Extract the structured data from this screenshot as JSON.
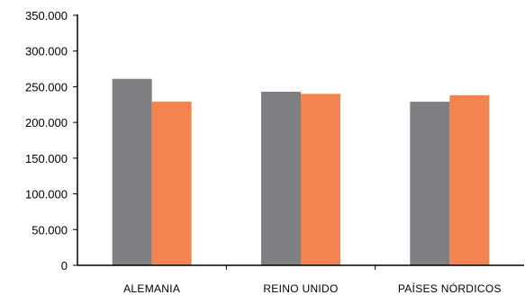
{
  "chart_data": {
    "type": "bar",
    "title": "",
    "xlabel": "",
    "ylabel": "",
    "categories": [
      "ALEMANIA",
      "REINO UNIDO",
      "PAÍSES NÓRDICOS"
    ],
    "series": [
      {
        "values": [
          261000,
          243000,
          229000
        ],
        "color": "#7f7f83"
      },
      {
        "values": [
          229000,
          240000,
          238000
        ],
        "color": "#f28450"
      }
    ],
    "ylim": [
      0,
      350000
    ],
    "yticks": [
      0,
      50000,
      100000,
      150000,
      200000,
      250000,
      300000,
      350000
    ],
    "ytick_labels": [
      "0",
      "50.000",
      "100.000",
      "150.000",
      "200.000",
      "250.000",
      "300.000",
      "350.000"
    ],
    "grid": false,
    "legend": "none"
  }
}
